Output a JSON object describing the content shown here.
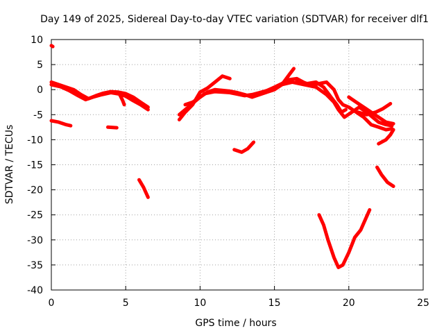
{
  "chart_data": {
    "type": "scatter",
    "title": "Day 149 of 2025, Sidereal Day-to-day VTEC variation (SDTVAR) for receiver dlf1",
    "xlabel": "GPS time / hours",
    "ylabel": "SDTVAR / TECUs",
    "xlim": [
      0,
      25
    ],
    "ylim": [
      -40,
      10
    ],
    "xticks": [
      "0",
      "5",
      "10",
      "15",
      "20",
      "25"
    ],
    "yticks": [
      "10",
      "5",
      "0",
      "-5",
      "-10",
      "-15",
      "-20",
      "-25",
      "-30",
      "-35",
      "-40"
    ],
    "grid": true,
    "color": "#ff0000",
    "series": [
      {
        "name": "s1",
        "points": [
          [
            0.0,
            8.8
          ],
          [
            0.1,
            8.6
          ]
        ]
      },
      {
        "name": "s2",
        "points": [
          [
            0.0,
            1.5
          ],
          [
            0.5,
            1.0
          ],
          [
            1.0,
            0.5
          ],
          [
            1.5,
            0.0
          ],
          [
            2.0,
            -1.0
          ],
          [
            2.5,
            -1.8
          ],
          [
            3.0,
            -1.2
          ],
          [
            3.5,
            -0.7
          ],
          [
            4.0,
            -0.4
          ],
          [
            4.5,
            -0.5
          ],
          [
            5.0,
            -0.8
          ],
          [
            5.5,
            -1.5
          ],
          [
            6.0,
            -2.5
          ],
          [
            6.5,
            -3.5
          ]
        ]
      },
      {
        "name": "s3",
        "points": [
          [
            0.0,
            1.0
          ],
          [
            0.6,
            0.6
          ],
          [
            1.2,
            -0.2
          ],
          [
            1.8,
            -1.2
          ],
          [
            2.3,
            -2.0
          ],
          [
            2.8,
            -1.5
          ],
          [
            3.4,
            -1.0
          ],
          [
            4.0,
            -0.6
          ],
          [
            4.6,
            -0.9
          ],
          [
            5.0,
            -1.3
          ],
          [
            5.5,
            -2.2
          ],
          [
            6.0,
            -3.0
          ],
          [
            6.5,
            -4.0
          ]
        ]
      },
      {
        "name": "s4",
        "points": [
          [
            0.0,
            -6.2
          ],
          [
            0.5,
            -6.5
          ],
          [
            1.0,
            -7.0
          ],
          [
            1.3,
            -7.2
          ]
        ]
      },
      {
        "name": "s5",
        "points": [
          [
            3.8,
            -7.5
          ],
          [
            4.4,
            -7.6
          ]
        ]
      },
      {
        "name": "s6",
        "points": [
          [
            4.6,
            -1.0
          ],
          [
            4.8,
            -2.2
          ],
          [
            4.9,
            -3.0
          ]
        ]
      },
      {
        "name": "s7",
        "points": [
          [
            5.9,
            -18.0
          ],
          [
            6.2,
            -19.5
          ],
          [
            6.5,
            -21.5
          ]
        ]
      },
      {
        "name": "s8",
        "points": [
          [
            8.6,
            -6.0
          ],
          [
            9.0,
            -4.5
          ],
          [
            9.5,
            -3.0
          ],
          [
            10.0,
            -0.5
          ],
          [
            10.5,
            0.3
          ],
          [
            11.0,
            1.5
          ],
          [
            11.5,
            2.7
          ],
          [
            12.0,
            2.2
          ]
        ]
      },
      {
        "name": "s9",
        "points": [
          [
            8.6,
            -5.0
          ],
          [
            9.2,
            -3.5
          ],
          [
            9.8,
            -2.0
          ],
          [
            10.3,
            -0.8
          ],
          [
            11.0,
            -0.4
          ],
          [
            11.5,
            -0.5
          ],
          [
            12.0,
            -0.6
          ],
          [
            12.5,
            -0.9
          ],
          [
            13.0,
            -1.2
          ],
          [
            13.5,
            -1.0
          ],
          [
            14.0,
            -0.6
          ],
          [
            14.5,
            -0.2
          ],
          [
            15.0,
            0.5
          ],
          [
            15.5,
            1.2
          ],
          [
            16.0,
            2.0
          ],
          [
            16.5,
            2.2
          ],
          [
            17.0,
            1.4
          ],
          [
            17.5,
            0.8
          ],
          [
            18.0,
            1.2
          ],
          [
            18.5,
            1.5
          ],
          [
            19.0,
            0.0
          ],
          [
            19.3,
            -2.0
          ],
          [
            19.6,
            -3.0
          ],
          [
            20.0,
            -3.5
          ],
          [
            20.5,
            -4.5
          ],
          [
            21.0,
            -5.5
          ],
          [
            21.5,
            -7.0
          ],
          [
            22.0,
            -7.5
          ],
          [
            22.5,
            -8.0
          ],
          [
            22.9,
            -7.8
          ]
        ]
      },
      {
        "name": "s10",
        "points": [
          [
            9.0,
            -3.0
          ],
          [
            9.5,
            -2.5
          ],
          [
            10.0,
            -1.5
          ],
          [
            10.5,
            -0.5
          ],
          [
            11.0,
            0.0
          ],
          [
            12.0,
            -0.3
          ],
          [
            12.5,
            -0.6
          ],
          [
            13.0,
            -1.0
          ],
          [
            13.5,
            -1.5
          ],
          [
            14.0,
            -1.0
          ],
          [
            14.5,
            -0.5
          ],
          [
            15.0,
            0.0
          ],
          [
            15.5,
            1.0
          ],
          [
            16.0,
            3.0
          ],
          [
            16.3,
            4.2
          ]
        ]
      },
      {
        "name": "s11",
        "points": [
          [
            14.0,
            -0.8
          ],
          [
            14.8,
            0.2
          ],
          [
            15.5,
            1.0
          ],
          [
            16.2,
            1.5
          ],
          [
            17.0,
            1.0
          ],
          [
            17.8,
            0.5
          ],
          [
            18.5,
            -1.0
          ],
          [
            19.0,
            -2.5
          ],
          [
            19.3,
            -4.0
          ],
          [
            19.7,
            -5.5
          ],
          [
            20.2,
            -4.5
          ],
          [
            20.7,
            -3.5
          ],
          [
            21.2,
            -4.5
          ],
          [
            21.6,
            -5.5
          ],
          [
            22.0,
            -6.5
          ],
          [
            22.5,
            -7.0
          ],
          [
            22.9,
            -7.2
          ]
        ]
      },
      {
        "name": "s12",
        "points": [
          [
            16.5,
            1.8
          ],
          [
            17.2,
            1.2
          ],
          [
            17.8,
            1.5
          ],
          [
            18.3,
            0.5
          ],
          [
            18.8,
            -1.5
          ],
          [
            19.2,
            -3.0
          ],
          [
            19.5,
            -4.5
          ],
          [
            19.8,
            -4.0
          ]
        ]
      },
      {
        "name": "s13",
        "points": [
          [
            20.0,
            -1.5
          ],
          [
            20.5,
            -2.5
          ],
          [
            21.0,
            -3.5
          ],
          [
            21.5,
            -4.5
          ],
          [
            22.0,
            -5.5
          ],
          [
            22.5,
            -6.5
          ],
          [
            23.0,
            -6.8
          ]
        ]
      },
      {
        "name": "s14",
        "points": [
          [
            20.6,
            -4.5
          ],
          [
            21.2,
            -5.0
          ],
          [
            21.8,
            -4.5
          ],
          [
            22.3,
            -3.8
          ],
          [
            22.8,
            -2.8
          ]
        ]
      },
      {
        "name": "s15",
        "points": [
          [
            22.0,
            -10.8
          ],
          [
            22.5,
            -10.0
          ],
          [
            22.8,
            -9.0
          ],
          [
            23.0,
            -8.0
          ]
        ]
      },
      {
        "name": "s16",
        "points": [
          [
            12.3,
            -12.0
          ],
          [
            12.8,
            -12.5
          ],
          [
            13.2,
            -11.8
          ],
          [
            13.6,
            -10.5
          ]
        ]
      },
      {
        "name": "s17",
        "points": [
          [
            21.9,
            -15.5
          ],
          [
            22.2,
            -17.0
          ],
          [
            22.6,
            -18.5
          ],
          [
            23.0,
            -19.3
          ]
        ]
      },
      {
        "name": "s18",
        "points": [
          [
            18.0,
            -25.0
          ],
          [
            18.3,
            -27.0
          ],
          [
            18.6,
            -30.0
          ],
          [
            19.0,
            -33.5
          ],
          [
            19.3,
            -35.5
          ],
          [
            19.6,
            -35.0
          ],
          [
            20.0,
            -32.5
          ],
          [
            20.4,
            -29.5
          ],
          [
            20.8,
            -28.0
          ],
          [
            21.1,
            -26.0
          ],
          [
            21.4,
            -24.0
          ]
        ]
      }
    ]
  }
}
